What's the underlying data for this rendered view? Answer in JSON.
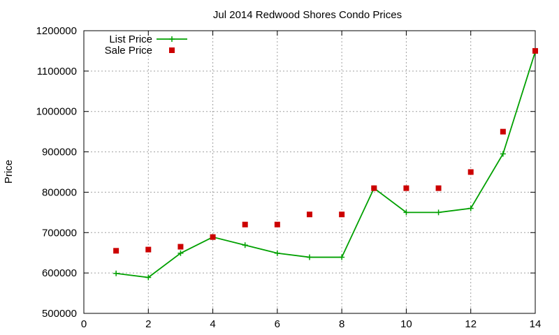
{
  "chart_data": {
    "type": "line",
    "title": "Jul 2014 Redwood Shores Condo Prices",
    "xlabel": "",
    "ylabel": "Price",
    "xlim": [
      0,
      14
    ],
    "ylim": [
      500000,
      1200000
    ],
    "xticks": [
      0,
      2,
      4,
      6,
      8,
      10,
      12,
      14
    ],
    "yticks": [
      500000,
      600000,
      700000,
      800000,
      900000,
      1000000,
      1100000,
      1200000
    ],
    "grid": true,
    "legend_position": "top-left",
    "series": [
      {
        "name": "List Price",
        "style": "line-with-plus-markers",
        "color": "#00a000",
        "x": [
          1,
          2,
          3,
          4,
          5,
          6,
          7,
          8,
          9,
          10,
          11,
          12,
          13,
          14
        ],
        "y": [
          599000,
          589000,
          649000,
          689000,
          669000,
          649000,
          639000,
          639000,
          810000,
          750000,
          750000,
          760000,
          895000,
          1148000
        ]
      },
      {
        "name": "Sale Price",
        "style": "square-markers",
        "color": "#cc0000",
        "x": [
          1,
          2,
          3,
          4,
          5,
          6,
          7,
          8,
          9,
          10,
          11,
          12,
          13,
          14
        ],
        "y": [
          655000,
          658000,
          665000,
          689000,
          720000,
          720000,
          745000,
          745000,
          810000,
          810000,
          810000,
          850000,
          950000,
          1150000
        ]
      }
    ]
  }
}
